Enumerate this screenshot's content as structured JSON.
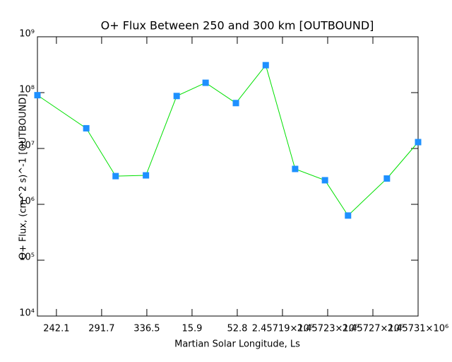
{
  "chart_data": {
    "type": "line",
    "title": "O+ Flux Between 250 and 300 km [OUTBOUND]",
    "x_label": "Martian Solar Longitude, Ls",
    "y_label": "O+ Flux, (cm^2 s)^-1 [OUTBOUND]",
    "log_y": true,
    "x": [
      -0.42,
      0.66,
      1.31,
      1.98,
      2.66,
      3.3,
      3.97,
      4.63,
      5.28,
      5.94,
      6.45,
      7.31,
      8
    ],
    "series": [
      {
        "name": "O+ Flux",
        "color": "#00e000",
        "marker_color": "#1e90ff",
        "values": [
          90000000,
          23000000,
          3200000,
          3300000,
          87000000,
          150000000,
          65000000,
          310000000,
          4300000,
          2700000,
          630000,
          2900000,
          13000000
        ]
      }
    ],
    "xlim": [
      -0.42,
      8
    ],
    "xticks": [
      {
        "value": 0,
        "label": "242.1"
      },
      {
        "value": 1,
        "label": "291.7"
      },
      {
        "value": 2,
        "label": "336.5"
      },
      {
        "value": 3,
        "label": "15.9"
      },
      {
        "value": 4,
        "label": "52.8"
      },
      {
        "value": 5,
        "label": "2.45719×10⁶"
      },
      {
        "value": 6,
        "label": "2.45723×10⁶"
      },
      {
        "value": 7,
        "label": "2.45727×10⁶"
      },
      {
        "value": 8,
        "label": "2.45731×10⁶"
      }
    ],
    "ylim": [
      10000,
      1000000000
    ],
    "yticks": [
      {
        "value": 10000,
        "label": "10⁴"
      },
      {
        "value": 100000,
        "label": "10⁵"
      },
      {
        "value": 1000000,
        "label": "10⁶"
      },
      {
        "value": 10000000,
        "label": "10⁷"
      },
      {
        "value": 100000000,
        "label": "10⁸"
      },
      {
        "value": 1000000000,
        "label": "10⁹"
      }
    ]
  }
}
